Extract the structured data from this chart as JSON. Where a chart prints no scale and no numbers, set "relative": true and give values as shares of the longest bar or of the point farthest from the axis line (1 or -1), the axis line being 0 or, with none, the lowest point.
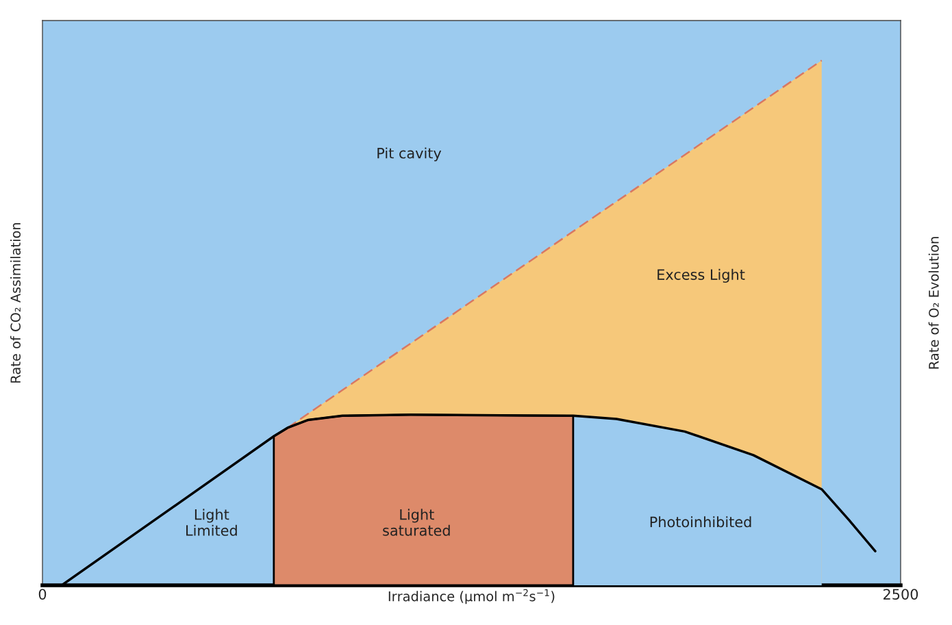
{
  "chart_data": {
    "type": "line",
    "relative": true,
    "xlabel": "Irradiance (µmol m$^{−2}$s$^{−1}$)",
    "ylabel": "Rate of CO₂ Assimilation",
    "y2label": "Rate of O₂ Evolution",
    "xlim": [
      0,
      2500
    ],
    "xticks": [
      0,
      2500
    ],
    "tick_labels": "x",
    "legend": false,
    "grid": false,
    "series": [
      {
        "type": "area",
        "color": "#f6c87a",
        "line_style": "dashed",
        "x": [
          714,
          774,
          874,
          1073,
          1532,
          1672,
          1871,
          2071,
          2270
        ],
        "values": [
          0.3,
          0.327,
          0.372,
          0.461,
          0.668,
          0.731,
          0.82,
          0.91,
          1.0
        ]
      },
      {
        "type": "area",
        "color": "#9ccbef",
        "x": [
          1546,
          1672,
          1871,
          2071,
          2270
        ],
        "values": [
          0.323,
          0.317,
          0.293,
          0.248,
          0.183
        ]
      },
      {
        "type": "area",
        "color": "#dd8a6a",
        "x": [
          674,
          714,
          774,
          874,
          1073,
          1532,
          1546
        ],
        "values": [
          0.284,
          0.3,
          0.315,
          0.323,
          0.325,
          0.323,
          0.323
        ]
      },
      {
        "color": "#000000",
        "line_style": "solid",
        "x": [
          56,
          674,
          714,
          774,
          874,
          1073,
          1532,
          1546,
          1672,
          1871,
          2071,
          2270,
          2350,
          2426
        ],
        "values": [
          0,
          0.284,
          0.3,
          0.315,
          0.323,
          0.325,
          0.323,
          0.323,
          0.317,
          0.293,
          0.248,
          0.183,
          0.124,
          0.065
        ]
      }
    ],
    "annotations": [
      "Pit cavity",
      "Excess Light",
      "Light\nLimited",
      "Light\nsaturated",
      "Photoinhibited"
    ]
  }
}
